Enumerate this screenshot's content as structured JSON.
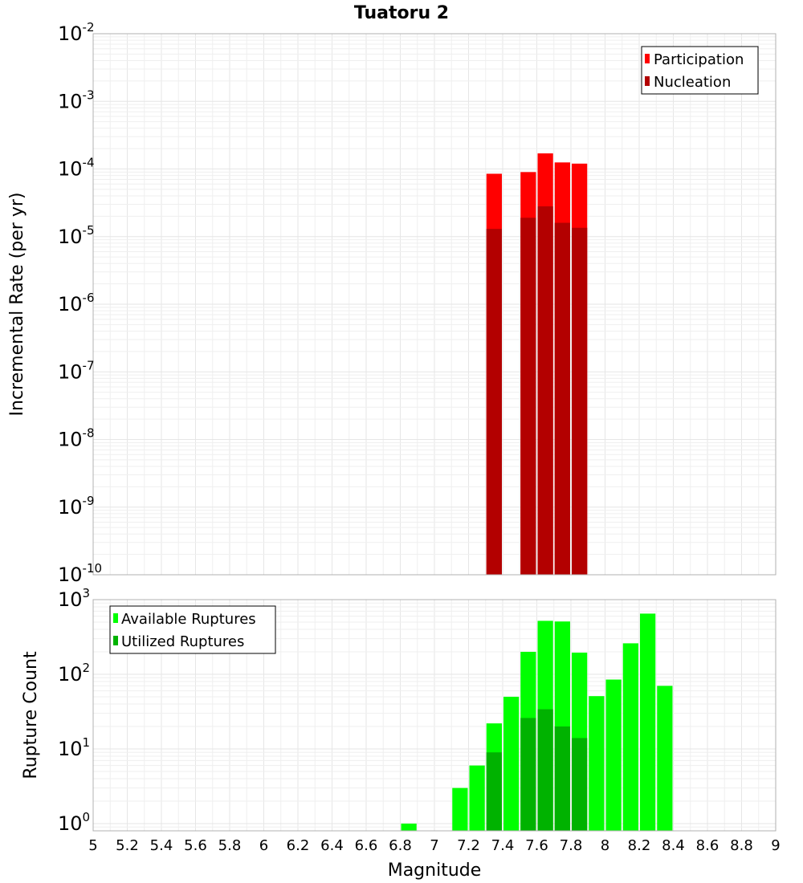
{
  "chart_data": {
    "type": "bar",
    "title": "Tuatoru 2",
    "xlabel": "Magnitude",
    "x_ticks": [
      "5",
      "5.2",
      "5.4",
      "5.6",
      "5.8",
      "6",
      "6.2",
      "6.4",
      "6.6",
      "6.8",
      "7",
      "7.2",
      "7.4",
      "7.6",
      "7.8",
      "8",
      "8.2",
      "8.4",
      "8.6",
      "8.8",
      "9"
    ],
    "xlim": [
      5,
      9
    ],
    "bin_width": 0.1,
    "panels": [
      {
        "ylabel": "Incremental Rate (per yr)",
        "yscale": "log",
        "ylim": [
          1e-10,
          0.01
        ],
        "y_ticks": [
          {
            "base": "10",
            "exp": "-10",
            "value": 1e-10
          },
          {
            "base": "10",
            "exp": "-9",
            "value": 1e-09
          },
          {
            "base": "10",
            "exp": "-8",
            "value": 1e-08
          },
          {
            "base": "10",
            "exp": "-7",
            "value": 1e-07
          },
          {
            "base": "10",
            "exp": "-6",
            "value": 1e-06
          },
          {
            "base": "10",
            "exp": "-5",
            "value": 1e-05
          },
          {
            "base": "10",
            "exp": "-4",
            "value": 0.0001
          },
          {
            "base": "10",
            "exp": "-3",
            "value": 0.001
          },
          {
            "base": "10",
            "exp": "-2",
            "value": 0.01
          }
        ],
        "legend_position": "top-right",
        "series": [
          {
            "name": "Participation",
            "color": "#ff0000",
            "x": [
              7.35,
              7.55,
              7.65,
              7.75,
              7.85
            ],
            "values": [
              8.5e-05,
              9e-05,
              0.00017,
              0.000125,
              0.00012
            ]
          },
          {
            "name": "Nucleation",
            "color": "#b30000",
            "x": [
              7.35,
              7.55,
              7.65,
              7.75,
              7.85
            ],
            "values": [
              1.3e-05,
              1.9e-05,
              2.8e-05,
              1.6e-05,
              1.35e-05
            ]
          }
        ]
      },
      {
        "ylabel": "Rupture Count",
        "yscale": "log",
        "ylim": [
          0.8,
          1000
        ],
        "y_ticks": [
          {
            "base": "10",
            "exp": "0",
            "value": 1
          },
          {
            "base": "10",
            "exp": "1",
            "value": 10
          },
          {
            "base": "10",
            "exp": "2",
            "value": 100
          },
          {
            "base": "10",
            "exp": "3",
            "value": 1000
          }
        ],
        "legend_position": "top-left",
        "series": [
          {
            "name": "Available Ruptures",
            "color": "#00ff00",
            "x": [
              6.85,
              7.15,
              7.25,
              7.35,
              7.45,
              7.55,
              7.65,
              7.75,
              7.85,
              7.95,
              8.05,
              8.15,
              8.25,
              8.35
            ],
            "values": [
              1,
              3,
              6,
              22,
              50,
              200,
              520,
              510,
              195,
              51,
              85,
              260,
              650,
              70
            ]
          },
          {
            "name": "Utilized Ruptures",
            "color": "#00b200",
            "x": [
              7.35,
              7.55,
              7.65,
              7.75,
              7.85
            ],
            "values": [
              9,
              26,
              34,
              20,
              14
            ]
          }
        ]
      }
    ]
  }
}
